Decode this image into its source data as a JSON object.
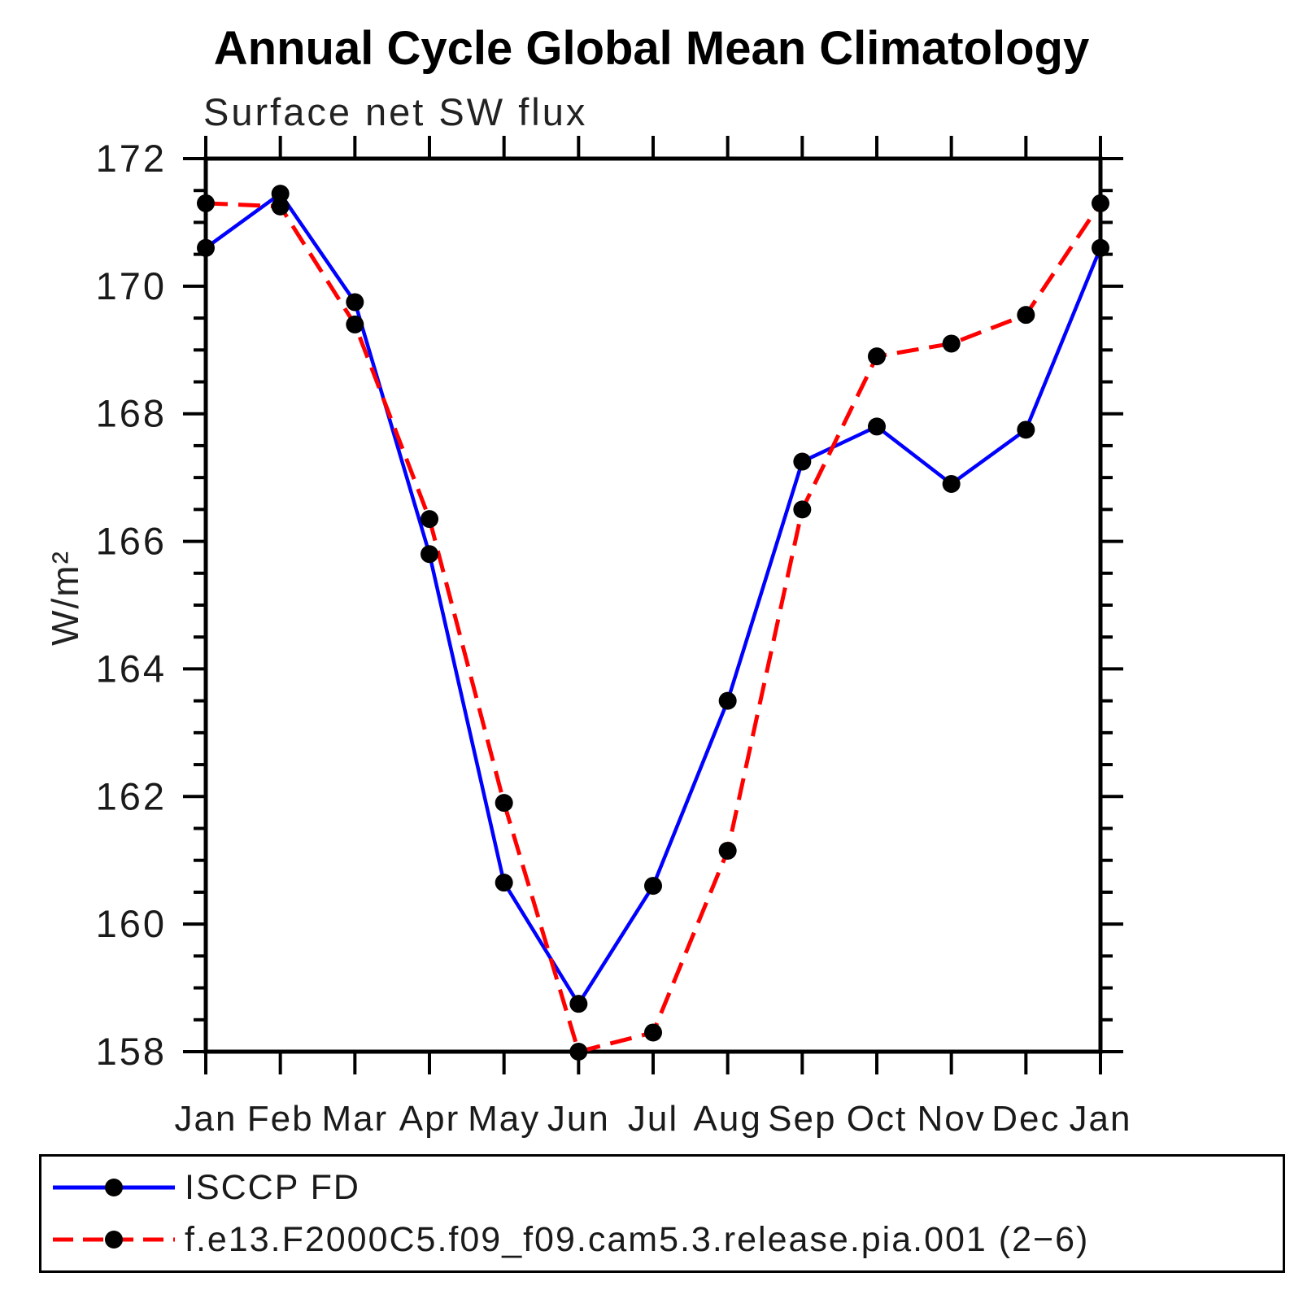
{
  "title": "Annual Cycle Global Mean Climatology",
  "chart_data": {
    "type": "line",
    "title": "Annual Cycle Global Mean Climatology",
    "subtitle": "Surface net SW flux",
    "ylabel": "W/m²",
    "xlabel": "",
    "categories": [
      "Jan",
      "Feb",
      "Mar",
      "Apr",
      "May",
      "Jun",
      "Jul",
      "Aug",
      "Sep",
      "Oct",
      "Nov",
      "Dec",
      "Jan"
    ],
    "ylim": [
      158,
      172
    ],
    "y_major_ticks": [
      158,
      160,
      162,
      164,
      166,
      168,
      170,
      172
    ],
    "y_minor_step": 0.5,
    "grid": false,
    "legend_position": "bottom",
    "colors": {
      "axis": "#000000",
      "marker": "#000000",
      "obs_line": "#0000ff",
      "model_line": "#ff0000"
    },
    "series": [
      {
        "name": "ISCCP FD",
        "color": "#0000ff",
        "style": "solid",
        "marker": "black-dot",
        "values": [
          170.6,
          171.45,
          169.75,
          165.8,
          160.65,
          158.75,
          160.6,
          163.5,
          167.25,
          167.8,
          166.9,
          167.75,
          170.6
        ]
      },
      {
        "name": "f.e13.F2000C5.f09_f09.cam5.3.release.pia.001 (2−6)",
        "color": "#ff0000",
        "style": "dashed",
        "marker": "black-dot",
        "values": [
          171.3,
          171.25,
          169.4,
          166.35,
          161.9,
          158.0,
          158.3,
          161.15,
          166.5,
          168.9,
          169.1,
          169.55,
          171.3
        ]
      }
    ]
  }
}
